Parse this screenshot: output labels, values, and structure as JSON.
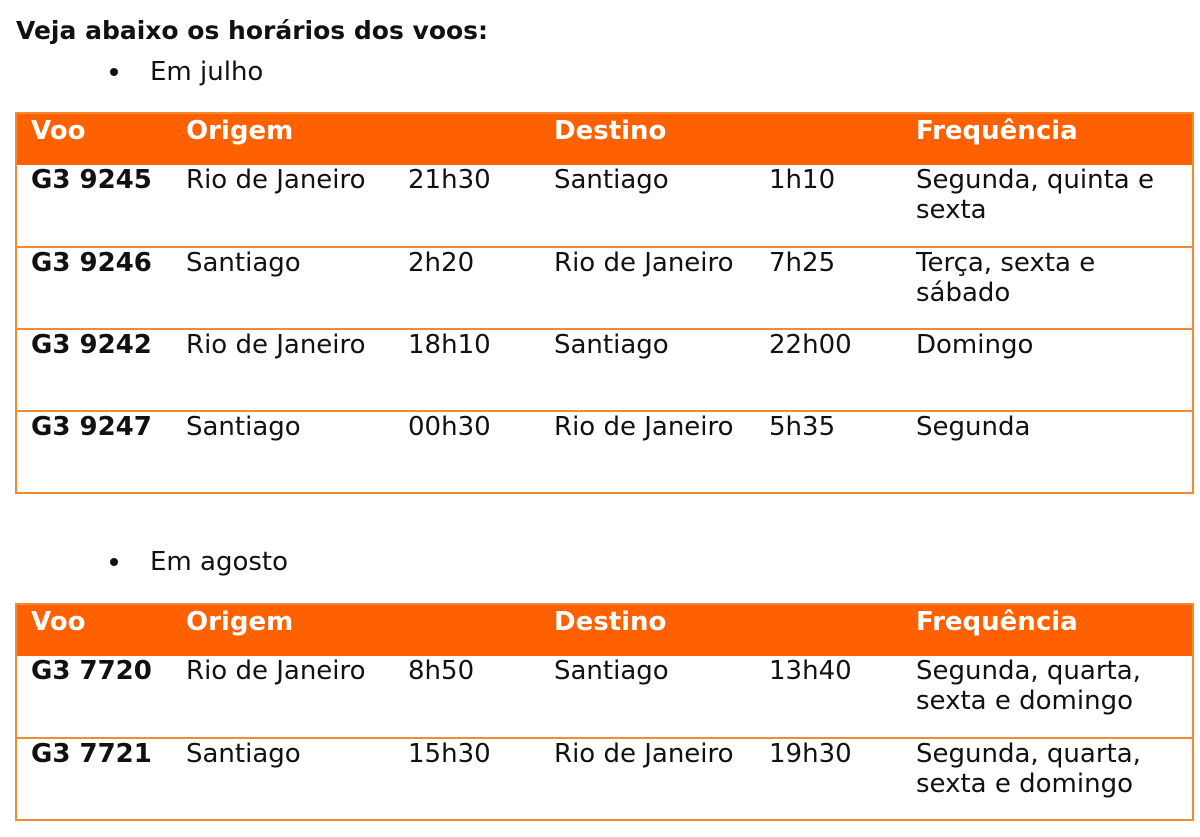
{
  "heading": "Veja abaixo os horários dos voos:",
  "sections": [
    {
      "bullet": "Em julho",
      "headers": [
        "Voo",
        "Origem",
        "",
        "Destino",
        "",
        "Frequência"
      ],
      "rows": [
        [
          "G3 9245",
          "Rio de Janeiro",
          "21h30",
          "Santiago",
          "1h10",
          "Segunda, quinta e sexta"
        ],
        [
          "G3 9246",
          "Santiago",
          "2h20",
          "Rio de Janeiro",
          "7h25",
          "Terça, sexta e sábado"
        ],
        [
          "G3 9242",
          "Rio de Janeiro",
          "18h10",
          "Santiago",
          "22h00",
          "Domingo"
        ],
        [
          "G3 9247",
          "Santiago",
          "00h30",
          "Rio de Janeiro",
          "5h35",
          "Segunda"
        ]
      ]
    },
    {
      "bullet": "Em agosto",
      "headers": [
        "Voo",
        "Origem",
        "",
        "Destino",
        "",
        "Frequência"
      ],
      "rows": [
        [
          "G3 7720",
          "Rio de Janeiro",
          "8h50",
          "Santiago",
          "13h40",
          "Segunda, quarta, sexta e domingo"
        ],
        [
          "G3 7721",
          "Santiago",
          "15h30",
          "Rio de Janeiro",
          "19h30",
          "Segunda, quarta, sexta e domingo"
        ]
      ]
    }
  ],
  "colors": {
    "header_bg": "#ff6000",
    "border": "#f28a32",
    "header_text": "#ffffff"
  }
}
